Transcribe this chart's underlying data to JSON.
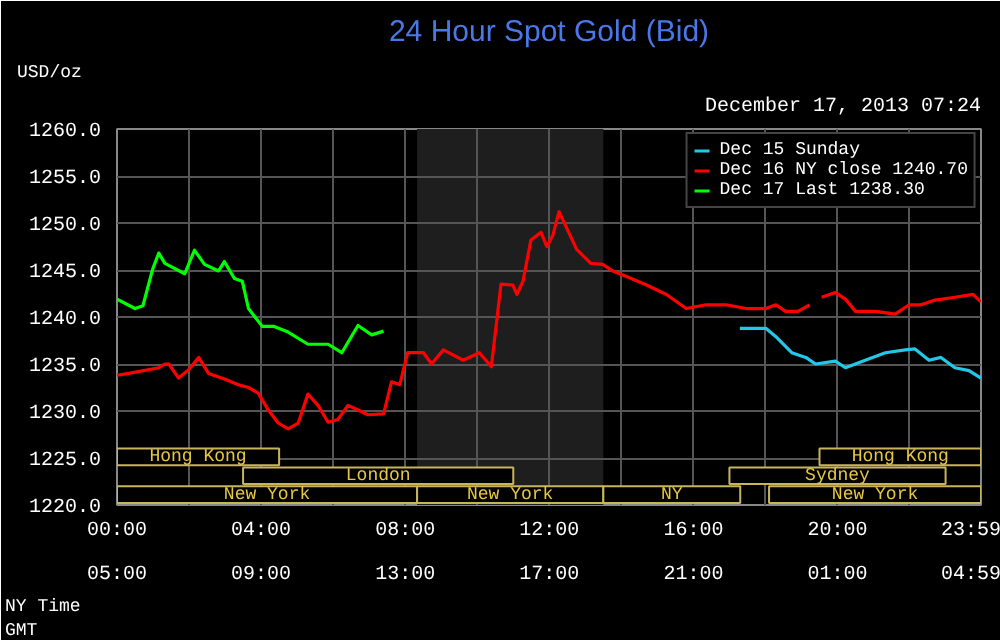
{
  "chart_data": {
    "type": "line",
    "title": "24 Hour Spot Gold (Bid)",
    "subtitle": "December 17, 2013 07:24",
    "ylabel": "USD/oz",
    "annotations": [
      "NY Time",
      "GMT"
    ],
    "xlim": [
      0,
      23.983
    ],
    "ylim": [
      1220,
      1260
    ],
    "xticks": [
      {
        "value": 0,
        "label": "00:00"
      },
      {
        "value": 2,
        "label": null
      },
      {
        "value": 4,
        "label": "04:00"
      },
      {
        "value": 6,
        "label": null
      },
      {
        "value": 8,
        "label": "08:00"
      },
      {
        "value": 10,
        "label": null
      },
      {
        "value": 12,
        "label": "12:00"
      },
      {
        "value": 14,
        "label": null
      },
      {
        "value": 16,
        "label": "16:00"
      },
      {
        "value": 18,
        "label": null
      },
      {
        "value": 20,
        "label": "20:00"
      },
      {
        "value": 22,
        "label": null
      },
      {
        "value": 23.983,
        "label": "23:59"
      }
    ],
    "x2lim": [
      "2013-12-17T05:00",
      "2013-12-18T04:59"
    ],
    "x2ticks": [
      {
        "value": "2013-12-17T05:00",
        "label": "05:00"
      },
      {
        "value": "2013-12-17T09:00",
        "label": "09:00"
      },
      {
        "value": "2013-12-17T13:00",
        "label": "13:00"
      },
      {
        "value": "2013-12-17T17:00",
        "label": "17:00"
      },
      {
        "value": "2013-12-17T21:00",
        "label": "21:00"
      },
      {
        "value": "2013-12-18T01:00",
        "label": "01:00"
      },
      {
        "value": "2013-12-18T04:59",
        "label": "04:59"
      }
    ],
    "yticks": [
      {
        "value": 1220,
        "label": "1220.0"
      },
      {
        "value": 1225,
        "label": "1225.0"
      },
      {
        "value": 1230,
        "label": "1230.0"
      },
      {
        "value": 1235,
        "label": "1235.0"
      },
      {
        "value": 1240,
        "label": "1240.0"
      },
      {
        "value": 1245,
        "label": "1245.0"
      },
      {
        "value": 1250,
        "label": "1250.0"
      },
      {
        "value": 1255,
        "label": "1255.0"
      },
      {
        "value": 1260,
        "label": "1260.0"
      }
    ],
    "grid": true,
    "legend": "top right",
    "line_style": "solid",
    "bands": [
      {
        "axis": "x",
        "from": 8.33,
        "to": 13.5,
        "label": null,
        "color": "#1e1e1e"
      },
      {
        "axis": "x",
        "from": 0,
        "to": 8.33,
        "label": "New York",
        "color": "#c8b45a"
      },
      {
        "axis": "x",
        "from": 8.33,
        "to": 13.5,
        "label": "New York",
        "color": "#c8b45a"
      },
      {
        "axis": "x",
        "from": 13.5,
        "to": 17.3,
        "label": "NY",
        "color": "#c8b45a"
      },
      {
        "axis": "x",
        "from": 18.1,
        "to": 23.983,
        "label": "New York",
        "color": "#c8b45a"
      },
      {
        "axis": "x",
        "from": 3.5,
        "to": 11,
        "label": "London",
        "color": "#c8b45a"
      },
      {
        "axis": "x",
        "from": 17,
        "to": 23,
        "label": "Sydney",
        "color": "#c8b45a"
      },
      {
        "axis": "x",
        "from": 0,
        "to": 4.5,
        "label": "Hong Kong",
        "color": "#c8b45a"
      },
      {
        "axis": "x",
        "from": 19.5,
        "to": 23.983,
        "label": "Hong Kong",
        "color": "#c8b45a"
      }
    ],
    "series": [
      {
        "name": "Dec 15 Sunday",
        "color": "#22c8e8",
        "x": [
          17.29,
          18.01,
          18.29,
          18.73,
          19.12,
          19.39,
          19.94,
          20.22,
          20.77,
          21.33,
          21.88,
          22.15,
          22.54,
          22.87,
          23.26,
          23.65,
          23.98
        ],
        "values": [
          1238.8,
          1238.8,
          1237.9,
          1236.2,
          1235.7,
          1235.0,
          1235.3,
          1234.6,
          1235.4,
          1236.2,
          1236.5,
          1236.6,
          1235.4,
          1235.7,
          1234.6,
          1234.3,
          1233.5
        ]
      },
      {
        "name": "Dec 16 NY close 1240.70",
        "color": "#ff0000",
        "x": [
          0,
          0.33,
          1.16,
          1.33,
          1.44,
          1.71,
          1.99,
          2.27,
          2.54,
          2.98,
          3.37,
          3.65,
          3.92,
          4.2,
          4.48,
          4.75,
          5.03,
          5.3,
          5.58,
          5.86,
          6.13,
          6.41,
          6.69,
          6.96,
          7.4,
          7.62,
          7.85,
          8.07,
          8.51,
          8.73,
          9.06,
          9.61,
          10.06,
          10.39,
          10.66,
          10.99,
          11.1,
          11.27,
          11.49,
          11.77,
          11.93,
          12.1,
          12.27,
          12.49,
          12.76,
          13.15,
          13.48,
          13.76,
          14.14,
          14.7,
          15.25,
          15.8,
          16.35,
          16.91,
          17.46,
          18.01,
          18.29,
          18.56,
          18.9,
          19.23,
          19.3,
          19.56,
          19.94,
          20.22,
          20.5,
          21.05,
          21.6,
          21.99,
          22.32,
          22.71,
          23.26,
          23.76,
          23.98
        ],
        "values": [
          1233.8,
          1234.0,
          1234.6,
          1235.0,
          1235.0,
          1233.5,
          1234.4,
          1235.7,
          1234.0,
          1233.4,
          1232.8,
          1232.5,
          1231.9,
          1230.1,
          1228.7,
          1228.1,
          1228.7,
          1231.8,
          1230.6,
          1228.8,
          1229.1,
          1230.6,
          1230.1,
          1229.6,
          1229.7,
          1233.1,
          1232.8,
          1236.2,
          1236.2,
          1235.0,
          1236.5,
          1235.4,
          1236.2,
          1234.7,
          1243.5,
          1243.4,
          1242.4,
          1243.8,
          1248.2,
          1249.0,
          1247.5,
          1248.7,
          1251.2,
          1249.4,
          1247.2,
          1245.7,
          1245.6,
          1244.9,
          1244.3,
          1243.4,
          1242.4,
          1240.9,
          1241.3,
          1241.3,
          1240.9,
          1240.9,
          1241.3,
          1240.6,
          1240.6,
          1241.3,
          null,
          1242.1,
          1242.6,
          1241.9,
          1240.6,
          1240.6,
          1240.3,
          1241.3,
          1241.3,
          1241.8,
          1242.1,
          1242.4,
          1241.6
        ]
      },
      {
        "name": "Dec 17 Last 1238.30",
        "color": "#00ff00",
        "x": [
          0,
          0.5,
          0.72,
          0.99,
          1.16,
          1.33,
          1.88,
          2.15,
          2.43,
          2.82,
          2.98,
          3.26,
          3.48,
          3.65,
          4.03,
          4.36,
          4.75,
          5.3,
          5.86,
          6.24,
          6.69,
          7.07,
          7.4
        ],
        "values": [
          1241.9,
          1240.9,
          1241.2,
          1245.1,
          1246.8,
          1245.7,
          1244.6,
          1247.1,
          1245.6,
          1244.9,
          1245.9,
          1244.1,
          1243.8,
          1240.9,
          1239.0,
          1239.0,
          1238.4,
          1237.1,
          1237.1,
          1236.2,
          1239.1,
          1238.1,
          1238.5
        ]
      }
    ]
  }
}
